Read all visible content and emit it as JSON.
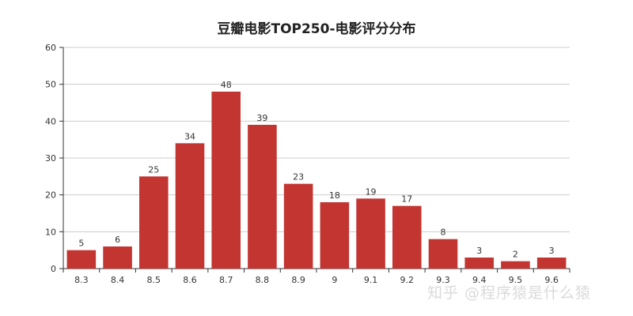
{
  "chart_data": {
    "type": "bar",
    "title": "豆瓣电影TOP250-电影评分分布",
    "xlabel": "",
    "ylabel": "",
    "categories": [
      "8.3",
      "8.4",
      "8.5",
      "8.6",
      "8.7",
      "8.8",
      "8.9",
      "9",
      "9.1",
      "9.2",
      "9.3",
      "9.4",
      "9.5",
      "9.6"
    ],
    "values": [
      5,
      6,
      25,
      34,
      48,
      39,
      23,
      18,
      19,
      17,
      8,
      3,
      2,
      3
    ],
    "ylim": [
      0,
      60
    ],
    "yticks": [
      0,
      10,
      20,
      30,
      40,
      50,
      60
    ],
    "grid": true,
    "legend": "none",
    "bar_color": "#c23531",
    "data_labels": true
  },
  "watermark": "知乎 @程序猿是什么猿"
}
